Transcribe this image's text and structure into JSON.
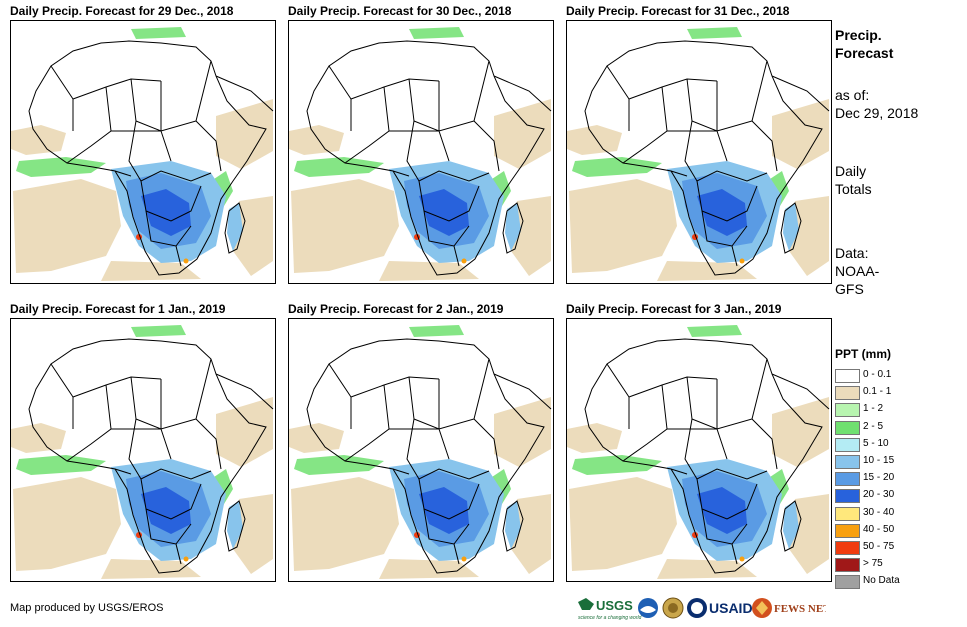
{
  "panels": [
    {
      "title": "Daily Precip. Forecast for 29 Dec., 2018"
    },
    {
      "title": "Daily Precip. Forecast for 30 Dec., 2018"
    },
    {
      "title": "Daily Precip. Forecast for 31 Dec., 2018"
    },
    {
      "title": "Daily Precip. Forecast for 1 Jan., 2019"
    },
    {
      "title": "Daily Precip. Forecast for 2 Jan., 2019"
    },
    {
      "title": "Daily Precip. Forecast for 3 Jan., 2019"
    }
  ],
  "sidebar": {
    "heading_line1": "Precip.",
    "heading_line2": "Forecast",
    "asof_line1": "as of:",
    "asof_line2": "Dec 29, 2018",
    "totals_line1": "Daily",
    "totals_line2": "Totals",
    "data_line1": "Data:",
    "data_line2": "NOAA-",
    "data_line3": "GFS"
  },
  "legend": {
    "title": "PPT (mm)",
    "items": [
      {
        "label": "0 - 0.1",
        "color": "#ffffff"
      },
      {
        "label": "0.1 - 1",
        "color": "#ecdcbc"
      },
      {
        "label": "1 - 2",
        "color": "#b8f5b0"
      },
      {
        "label": "2 - 5",
        "color": "#70e070"
      },
      {
        "label": "5 - 10",
        "color": "#b4ecf4"
      },
      {
        "label": "10 - 15",
        "color": "#88c4ec"
      },
      {
        "label": "15 - 20",
        "color": "#5a9be4"
      },
      {
        "label": "20 - 30",
        "color": "#2862dc"
      },
      {
        "label": "30 - 40",
        "color": "#ffe87c"
      },
      {
        "label": "40 - 50",
        "color": "#f8a010"
      },
      {
        "label": "50 - 75",
        "color": "#f03c10"
      },
      {
        "label": "> 75",
        "color": "#a01818"
      },
      {
        "label": "No Data",
        "color": "#a0a0a0"
      }
    ]
  },
  "credit": "Map produced by USGS/EROS",
  "logos": {
    "usgs": "USGS",
    "usgs_tagline": "science for a changing world",
    "usaid": "USAID",
    "fewsnet": "FEWS NET"
  },
  "colors": {
    "land_outline": "#000000",
    "light_precip": "#ecdcbc",
    "heavy_precip": "#2862dc"
  }
}
